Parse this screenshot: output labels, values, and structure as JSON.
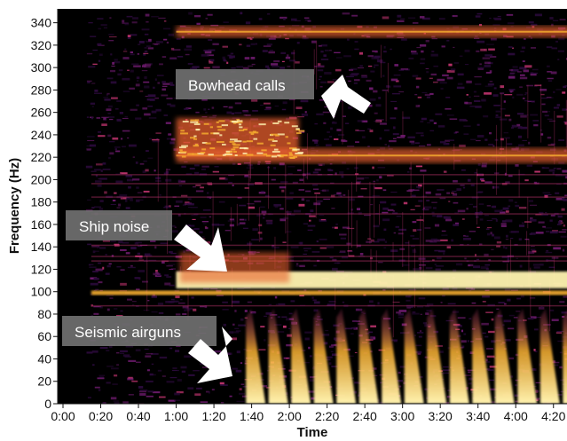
{
  "chart_data": {
    "type": "heatmap",
    "title": "",
    "xlabel": "Time",
    "ylabel": "Frequency (Hz)",
    "xlim_seconds": [
      0,
      270
    ],
    "ylim": [
      0,
      350
    ],
    "x_ticks": [
      {
        "value": 0,
        "label": "0:00"
      },
      {
        "value": 20,
        "label": "0:20"
      },
      {
        "value": 40,
        "label": "0:40"
      },
      {
        "value": 60,
        "label": "1:00"
      },
      {
        "value": 80,
        "label": "1:20"
      },
      {
        "value": 100,
        "label": "1:40"
      },
      {
        "value": 120,
        "label": "2:00"
      },
      {
        "value": 140,
        "label": "2:20"
      },
      {
        "value": 160,
        "label": "2:40"
      },
      {
        "value": 180,
        "label": "3:00"
      },
      {
        "value": 200,
        "label": "3:20"
      },
      {
        "value": 220,
        "label": "3:40"
      },
      {
        "value": 240,
        "label": "4:00"
      },
      {
        "value": 260,
        "label": "4:20"
      }
    ],
    "y_ticks": [
      {
        "value": 0,
        "label": "0"
      },
      {
        "value": 20,
        "label": "20"
      },
      {
        "value": 40,
        "label": "40"
      },
      {
        "value": 60,
        "label": "60"
      },
      {
        "value": 80,
        "label": "80"
      },
      {
        "value": 100,
        "label": "100"
      },
      {
        "value": 120,
        "label": "120"
      },
      {
        "value": 140,
        "label": "140"
      },
      {
        "value": 160,
        "label": "160"
      },
      {
        "value": 180,
        "label": "180"
      },
      {
        "value": 200,
        "label": "200"
      },
      {
        "value": 220,
        "label": "220"
      },
      {
        "value": 240,
        "label": "240"
      },
      {
        "value": 260,
        "label": "260"
      },
      {
        "value": 280,
        "label": "280"
      },
      {
        "value": 300,
        "label": "300"
      },
      {
        "value": 320,
        "label": "320"
      },
      {
        "value": 340,
        "label": "340"
      }
    ],
    "colormap": [
      "#000000",
      "#2a0a3a",
      "#6a1a6a",
      "#b8326a",
      "#e8602e",
      "#f8b030",
      "#fff3b0"
    ],
    "features": [
      {
        "name": "tonal band",
        "t_start": 60,
        "t_end": 270,
        "f_start": 327,
        "f_end": 337
      },
      {
        "name": "tonal band",
        "t_start": 60,
        "t_end": 270,
        "f_start": 215,
        "f_end": 228
      },
      {
        "name": "bowhead call cluster",
        "t_start": 60,
        "t_end": 125,
        "f_start": 220,
        "f_end": 255
      },
      {
        "name": "ship noise band",
        "t_start": 60,
        "t_end": 270,
        "f_start": 103,
        "f_end": 118
      },
      {
        "name": "ship noise band",
        "t_start": 15,
        "t_end": 270,
        "f_start": 97,
        "f_end": 101
      },
      {
        "name": "seismic airgun pulses",
        "t_start": 97,
        "t_end": 270,
        "f_start": 0,
        "f_end": 85,
        "interval_seconds": 12
      }
    ],
    "annotations": [
      {
        "label": "Bowhead calls",
        "points_to_t": 155,
        "points_to_f": 260
      },
      {
        "label": "Ship noise",
        "points_to_t": 105,
        "points_to_f": 120
      },
      {
        "label": "Seismic airguns",
        "points_to_t": 100,
        "points_to_f": 20
      }
    ]
  },
  "colors": {
    "label_box": "#707070",
    "arrow": "#ffffff",
    "background": "#ffffff"
  }
}
